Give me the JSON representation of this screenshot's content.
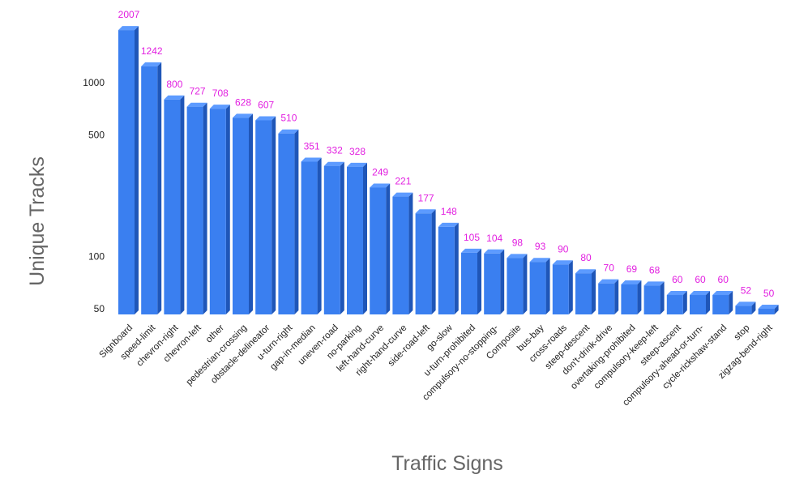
{
  "chart_data": {
    "type": "bar",
    "xlabel": "Traffic Signs",
    "ylabel": "Unique Tracks",
    "yscale": "log",
    "ylim": [
      50,
      2007
    ],
    "yticks": [
      50,
      100,
      500,
      1000
    ],
    "grid": false,
    "categories": [
      "Signboard",
      "speed-limit",
      "chevron-right",
      "chevron-left",
      "other",
      "pedestrian-crossing",
      "obstacle-delineator",
      "u-turn-right",
      "gap-in-median",
      "uneven-road",
      "no-parking",
      "left-hand-curve",
      "right-hand-curve",
      "side-road-left",
      "go-slow",
      "u-turn-prohibited",
      "compulsory-no-stopping-",
      "Composite",
      "bus-bay",
      "cross-roads",
      "steep-descent",
      "don't-drink-drive",
      "overtaking-prohibited",
      "compulsory-keep-left",
      "steep-ascent",
      "compulsory-ahead-or-turn-",
      "cycle-rickshaw-stand",
      "stop",
      "zigzag-bend-right"
    ],
    "values": [
      2007,
      1242,
      800,
      727,
      708,
      628,
      607,
      510,
      351,
      332,
      328,
      249,
      221,
      177,
      148,
      105,
      104,
      98,
      93,
      90,
      80,
      70,
      69,
      68,
      60,
      60,
      60,
      52,
      50
    ],
    "colors": {
      "bar_front": "#3a7ff0",
      "bar_top": "#5d9bff",
      "bar_side": "#1f56b8",
      "data_label": "#e21fe0"
    }
  }
}
